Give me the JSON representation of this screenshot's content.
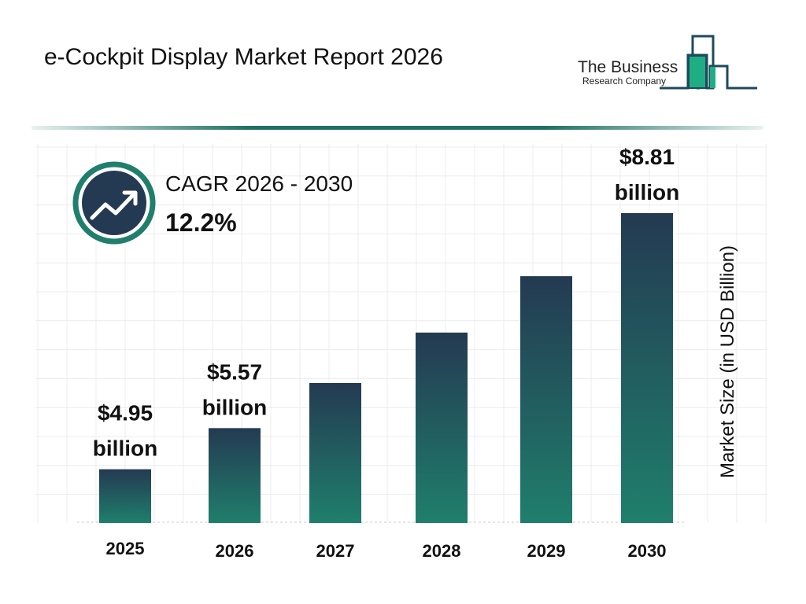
{
  "title": "e-Cockpit Display Market Report 2026",
  "logo": {
    "line1": "The Business",
    "line2": "Research Company",
    "colors": {
      "outline": "#1e4a5c",
      "fill": "#1fae84"
    }
  },
  "cagr": {
    "label": "CAGR 2026 - 2030",
    "value": "12.2%",
    "icon": "trending-up-icon"
  },
  "chart_data": {
    "type": "bar",
    "categories": [
      "2025",
      "2026",
      "2027",
      "2028",
      "2029",
      "2030"
    ],
    "values": [
      4.95,
      5.57,
      6.25,
      7.01,
      7.86,
      8.81
    ],
    "data_labels": [
      [
        "$4.95",
        "billion"
      ],
      [
        "$5.57",
        "billion"
      ],
      null,
      null,
      null,
      [
        "$8.81",
        "billion"
      ]
    ],
    "ylabel": "Market Size (in USD Billion)",
    "xlabel": "",
    "grid": true,
    "bar_gradient": [
      "#243a52",
      "#1f7f6c"
    ]
  }
}
